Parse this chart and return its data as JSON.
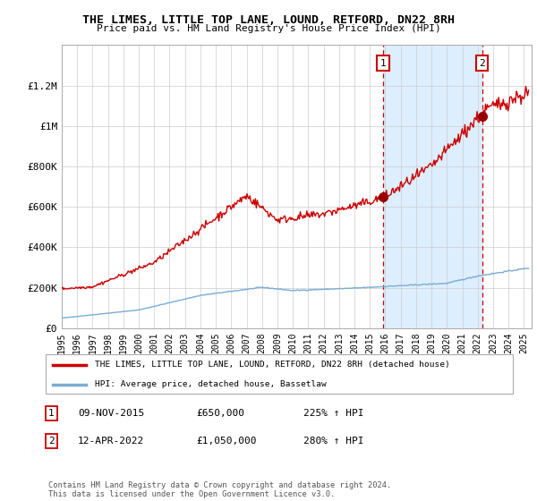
{
  "title": "THE LIMES, LITTLE TOP LANE, LOUND, RETFORD, DN22 8RH",
  "subtitle": "Price paid vs. HM Land Registry's House Price Index (HPI)",
  "ylim": [
    0,
    1400000
  ],
  "yticks": [
    0,
    200000,
    400000,
    600000,
    800000,
    1000000,
    1200000
  ],
  "ytick_labels": [
    "£0",
    "£200K",
    "£400K",
    "£600K",
    "£800K",
    "£1M",
    "£1.2M"
  ],
  "xlim_start": 1995.0,
  "xlim_end": 2025.5,
  "xtick_years": [
    1995,
    1996,
    1997,
    1998,
    1999,
    2000,
    2001,
    2002,
    2003,
    2004,
    2005,
    2006,
    2007,
    2008,
    2009,
    2010,
    2011,
    2012,
    2013,
    2014,
    2015,
    2016,
    2017,
    2018,
    2019,
    2020,
    2021,
    2022,
    2023,
    2024,
    2025
  ],
  "hpi_line_color": "#7aadd4",
  "price_line_color": "#cc0000",
  "sale1_x": 2015.86,
  "sale1_y": 650000,
  "sale2_x": 2022.28,
  "sale2_y": 1050000,
  "vline_color": "#cc0000",
  "highlight_bg_color": "#ddeeff",
  "legend_label1": "THE LIMES, LITTLE TOP LANE, LOUND, RETFORD, DN22 8RH (detached house)",
  "legend_label2": "HPI: Average price, detached house, Bassetlaw",
  "table_row1": [
    "1",
    "09-NOV-2015",
    "£650,000",
    "225% ↑ HPI"
  ],
  "table_row2": [
    "2",
    "12-APR-2022",
    "£1,050,000",
    "280% ↑ HPI"
  ],
  "footer": "Contains HM Land Registry data © Crown copyright and database right 2024.\nThis data is licensed under the Open Government Licence v3.0.",
  "background_color": "#ffffff",
  "plot_bg_color": "#ffffff",
  "grid_color": "#cccccc"
}
